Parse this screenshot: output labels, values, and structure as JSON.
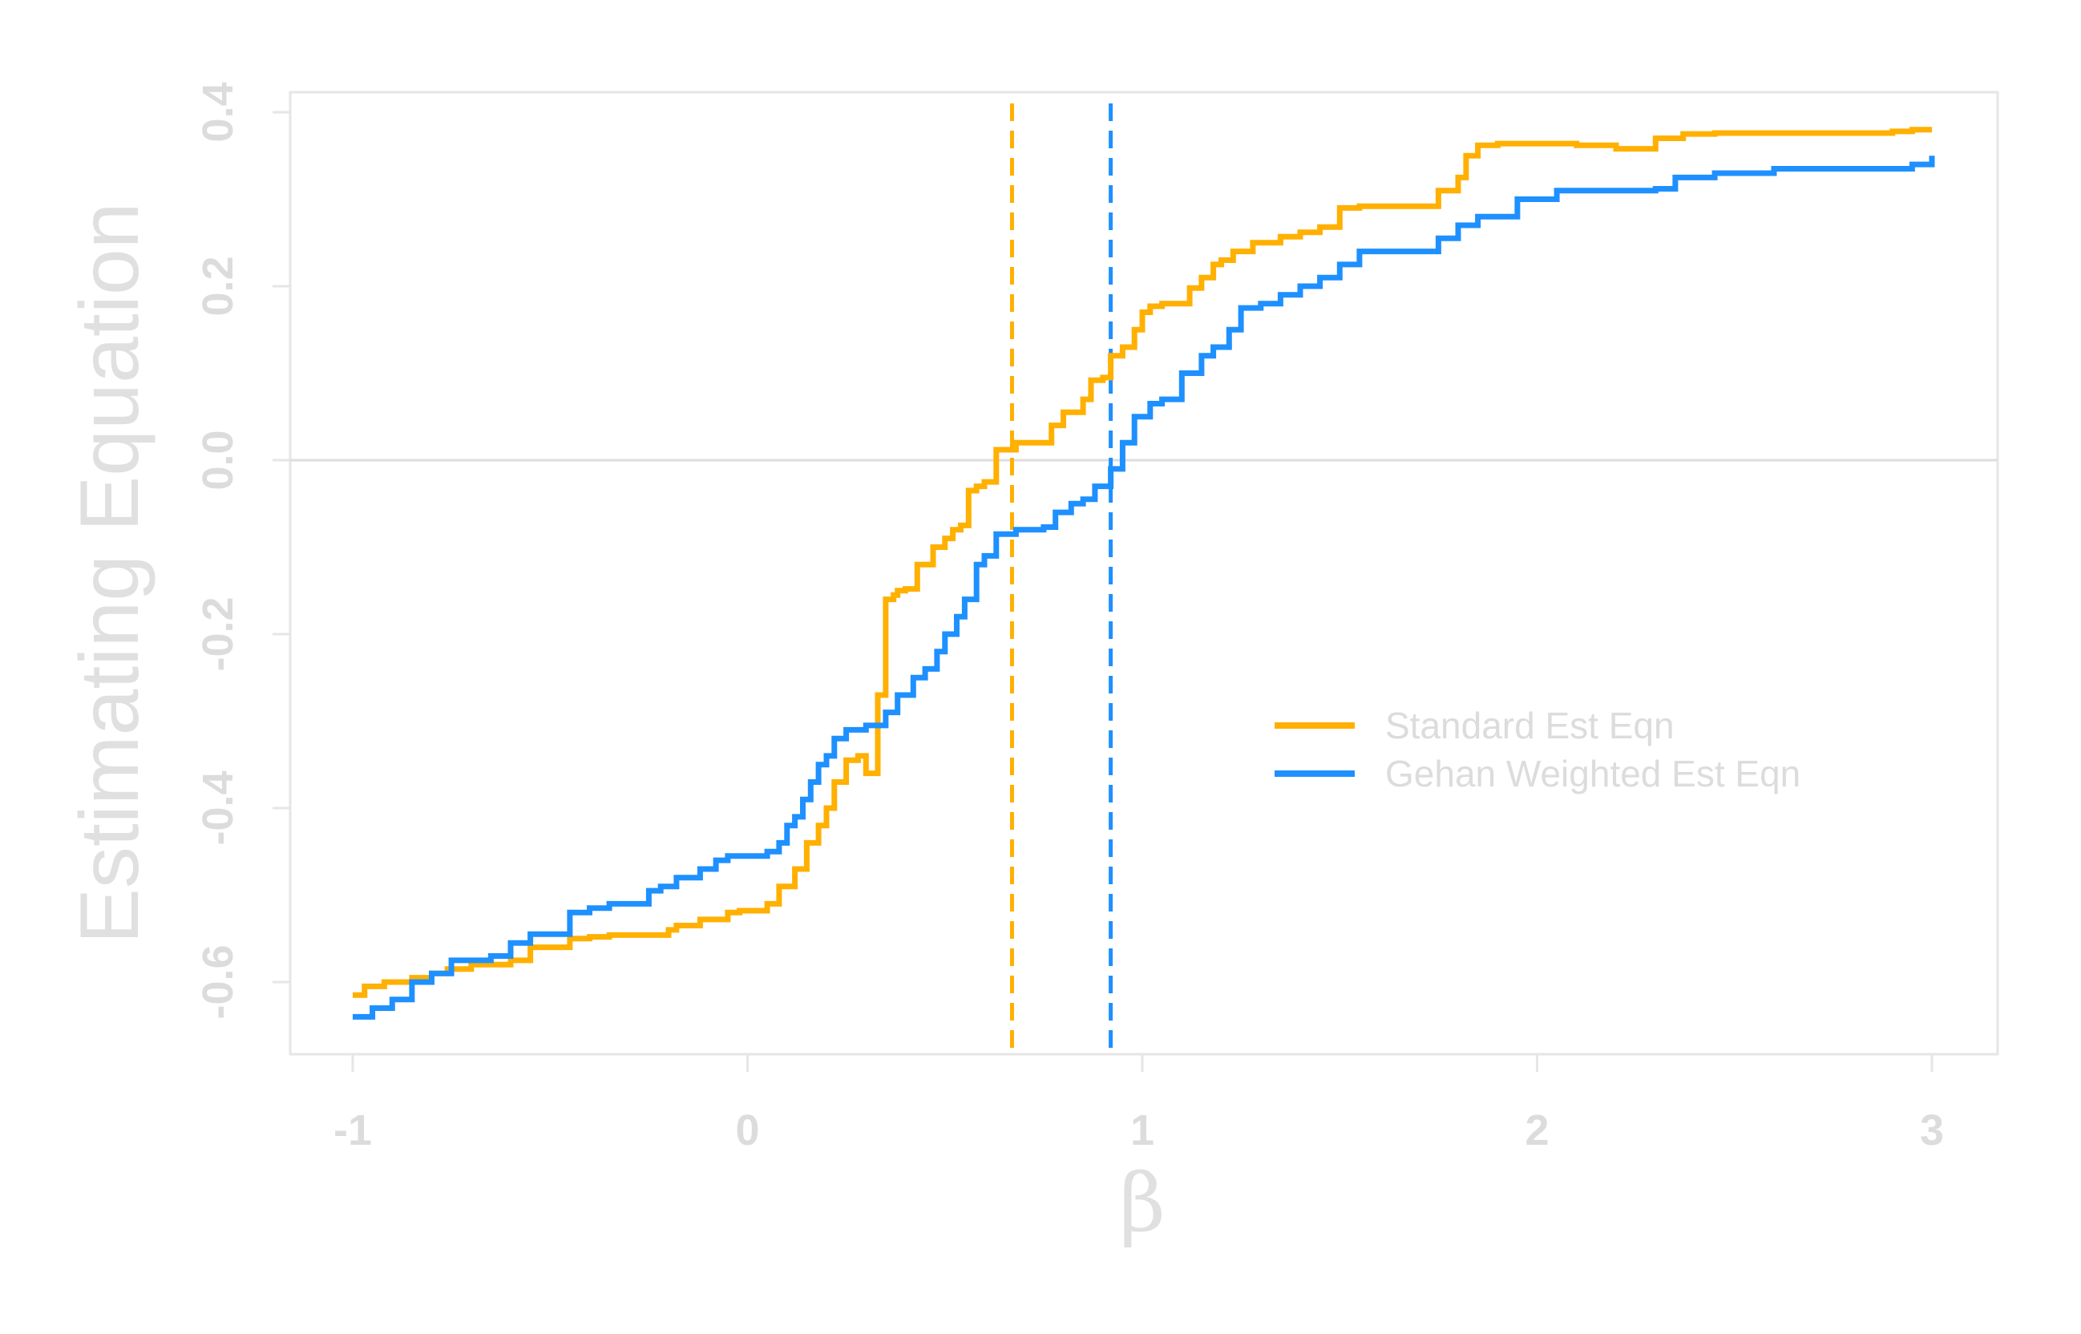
{
  "chart_data": {
    "type": "line",
    "xlabel": "β",
    "ylabel": "Estimating Equation",
    "xlim": [
      -1,
      3
    ],
    "ylim": [
      -0.68,
      0.42
    ],
    "x_ticks": [
      -1,
      0,
      1,
      2,
      3
    ],
    "x_tick_labels": [
      "-1",
      "0",
      "1",
      "2",
      "3"
    ],
    "y_ticks": [
      -0.6,
      -0.4,
      -0.2,
      0.0,
      0.2,
      0.4
    ],
    "y_tick_labels": [
      "-0.6",
      "-0.4",
      "-0.2",
      "0.0",
      "0.2",
      "0.4"
    ],
    "grid": false,
    "hline": 0.0,
    "legend_position": "right",
    "series": [
      {
        "name": "Standard Est Eqn",
        "color": "#FFB000",
        "style": "step",
        "x": [
          -1.0,
          -0.97,
          -0.92,
          -0.85,
          -0.8,
          -0.76,
          -0.7,
          -0.6,
          -0.55,
          -0.45,
          -0.4,
          -0.35,
          -0.2,
          -0.18,
          -0.12,
          -0.05,
          -0.02,
          0.0,
          0.05,
          0.08,
          0.12,
          0.15,
          0.18,
          0.2,
          0.22,
          0.25,
          0.28,
          0.3,
          0.33,
          0.35,
          0.37,
          0.38,
          0.4,
          0.43,
          0.47,
          0.5,
          0.52,
          0.54,
          0.56,
          0.58,
          0.6,
          0.63,
          0.68,
          0.77,
          0.8,
          0.85,
          0.87,
          0.9,
          0.92,
          0.95,
          0.98,
          1.0,
          1.02,
          1.05,
          1.12,
          1.15,
          1.18,
          1.2,
          1.23,
          1.28,
          1.35,
          1.4,
          1.45,
          1.5,
          1.55,
          1.75,
          1.8,
          1.82,
          1.85,
          1.9,
          2.1,
          2.2,
          2.3,
          2.37,
          2.45,
          2.6,
          2.9,
          2.95,
          3.0
        ],
        "y": [
          -0.615,
          -0.605,
          -0.6,
          -0.595,
          -0.59,
          -0.585,
          -0.58,
          -0.575,
          -0.56,
          -0.55,
          -0.548,
          -0.546,
          -0.54,
          -0.535,
          -0.528,
          -0.52,
          -0.518,
          -0.518,
          -0.51,
          -0.49,
          -0.47,
          -0.44,
          -0.42,
          -0.4,
          -0.37,
          -0.345,
          -0.34,
          -0.36,
          -0.27,
          -0.16,
          -0.155,
          -0.15,
          -0.148,
          -0.12,
          -0.1,
          -0.09,
          -0.08,
          -0.075,
          -0.035,
          -0.03,
          -0.025,
          0.012,
          0.02,
          0.04,
          0.055,
          0.07,
          0.092,
          0.095,
          0.12,
          0.13,
          0.15,
          0.17,
          0.177,
          0.18,
          0.198,
          0.21,
          0.225,
          0.23,
          0.24,
          0.25,
          0.257,
          0.262,
          0.268,
          0.29,
          0.292,
          0.31,
          0.325,
          0.35,
          0.362,
          0.364,
          0.362,
          0.358,
          0.37,
          0.375,
          0.376,
          0.376,
          0.378,
          0.38,
          0.38
        ]
      },
      {
        "name": "Gehan Weighted Est Eqn",
        "color": "#1E90FF",
        "style": "step",
        "x": [
          -1.0,
          -0.95,
          -0.9,
          -0.85,
          -0.8,
          -0.75,
          -0.65,
          -0.6,
          -0.55,
          -0.45,
          -0.4,
          -0.35,
          -0.25,
          -0.22,
          -0.18,
          -0.12,
          -0.08,
          -0.05,
          0.0,
          0.05,
          0.08,
          0.1,
          0.12,
          0.14,
          0.16,
          0.18,
          0.2,
          0.22,
          0.25,
          0.3,
          0.35,
          0.38,
          0.42,
          0.45,
          0.48,
          0.5,
          0.53,
          0.55,
          0.58,
          0.6,
          0.63,
          0.68,
          0.75,
          0.78,
          0.82,
          0.85,
          0.88,
          0.92,
          0.95,
          0.98,
          1.02,
          1.05,
          1.1,
          1.15,
          1.18,
          1.22,
          1.25,
          1.3,
          1.35,
          1.4,
          1.45,
          1.5,
          1.55,
          1.72,
          1.75,
          1.8,
          1.85,
          1.95,
          2.05,
          2.3,
          2.35,
          2.45,
          2.6,
          2.9,
          2.95,
          3.0
        ],
        "y": [
          -0.64,
          -0.63,
          -0.62,
          -0.6,
          -0.59,
          -0.575,
          -0.57,
          -0.555,
          -0.545,
          -0.52,
          -0.515,
          -0.51,
          -0.495,
          -0.49,
          -0.48,
          -0.47,
          -0.46,
          -0.455,
          -0.455,
          -0.45,
          -0.44,
          -0.42,
          -0.41,
          -0.39,
          -0.37,
          -0.35,
          -0.34,
          -0.32,
          -0.31,
          -0.305,
          -0.29,
          -0.27,
          -0.25,
          -0.24,
          -0.22,
          -0.2,
          -0.18,
          -0.16,
          -0.12,
          -0.11,
          -0.085,
          -0.08,
          -0.077,
          -0.06,
          -0.05,
          -0.045,
          -0.03,
          -0.01,
          0.02,
          0.05,
          0.065,
          0.07,
          0.1,
          0.12,
          0.13,
          0.15,
          0.175,
          0.18,
          0.19,
          0.2,
          0.21,
          0.225,
          0.24,
          0.24,
          0.255,
          0.27,
          0.28,
          0.3,
          0.31,
          0.312,
          0.325,
          0.33,
          0.335,
          0.335,
          0.34,
          0.35
        ]
      }
    ],
    "vlines": [
      {
        "x": 0.67,
        "color": "#FFB000",
        "style": "dashed"
      },
      {
        "x": 0.92,
        "color": "#1E90FF",
        "style": "dashed"
      }
    ]
  }
}
